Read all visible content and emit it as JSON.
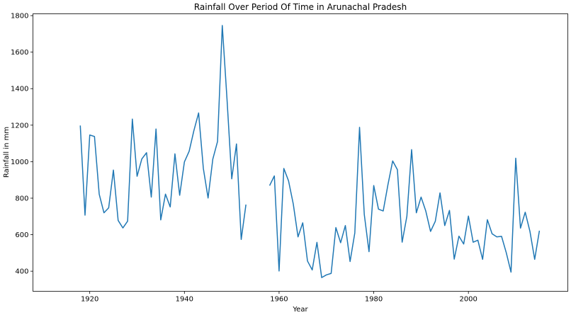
{
  "chart_data": {
    "type": "line",
    "title": "Rainfall Over Period Of Time in Arunachal Pradesh",
    "xlabel": "Year",
    "ylabel": "Rainfall in mm",
    "xlim": [
      1908,
      2021
    ],
    "ylim": [
      290,
      1810
    ],
    "xticks": [
      1920,
      1940,
      1960,
      1980,
      2000
    ],
    "yticks": [
      400,
      600,
      800,
      1000,
      1200,
      1400,
      1600,
      1800
    ],
    "grid": false,
    "legend": "none",
    "color": "#1f77b4",
    "series": [
      {
        "segments": [
          [
            [
              1918,
              1198
            ],
            [
              1919,
              707
            ],
            [
              1920,
              1146
            ],
            [
              1921,
              1138
            ],
            [
              1922,
              822
            ],
            [
              1923,
              720
            ],
            [
              1924,
              747
            ],
            [
              1925,
              954
            ],
            [
              1926,
              678
            ],
            [
              1927,
              637
            ],
            [
              1928,
              674
            ],
            [
              1929,
              1233
            ],
            [
              1930,
              920
            ],
            [
              1931,
              1015
            ],
            [
              1932,
              1049
            ],
            [
              1933,
              806
            ],
            [
              1934,
              1179
            ],
            [
              1935,
              681
            ],
            [
              1936,
              822
            ],
            [
              1937,
              752
            ],
            [
              1938,
              1043
            ],
            [
              1939,
              816
            ],
            [
              1940,
              999
            ],
            [
              1941,
              1057
            ],
            [
              1942,
              1170
            ],
            [
              1943,
              1267
            ],
            [
              1944,
              963
            ],
            [
              1945,
              801
            ],
            [
              1946,
              1014
            ],
            [
              1947,
              1111
            ],
            [
              1948,
              1746
            ],
            [
              1949,
              1342
            ],
            [
              1950,
              906
            ],
            [
              1951,
              1097
            ],
            [
              1952,
              574
            ],
            [
              1953,
              765
            ]
          ],
          [
            [
              1958,
              869
            ],
            [
              1959,
              922
            ],
            [
              1960,
              401
            ],
            [
              1961,
              963
            ],
            [
              1962,
              895
            ],
            [
              1963,
              768
            ],
            [
              1964,
              588
            ],
            [
              1965,
              665
            ],
            [
              1966,
              456
            ],
            [
              1967,
              407
            ],
            [
              1968,
              558
            ],
            [
              1969,
              365
            ],
            [
              1970,
              380
            ],
            [
              1971,
              388
            ],
            [
              1972,
              639
            ],
            [
              1973,
              556
            ],
            [
              1974,
              650
            ],
            [
              1975,
              453
            ],
            [
              1976,
              610
            ],
            [
              1977,
              1188
            ],
            [
              1978,
              711
            ],
            [
              1979,
              507
            ],
            [
              1980,
              869
            ],
            [
              1981,
              740
            ],
            [
              1982,
              730
            ],
            [
              1983,
              874
            ],
            [
              1984,
              1004
            ],
            [
              1985,
              956
            ],
            [
              1986,
              559
            ],
            [
              1987,
              701
            ],
            [
              1988,
              1066
            ],
            [
              1989,
              720
            ],
            [
              1990,
              806
            ],
            [
              1991,
              729
            ],
            [
              1992,
              618
            ],
            [
              1993,
              673
            ],
            [
              1994,
              829
            ],
            [
              1995,
              650
            ],
            [
              1996,
              733
            ],
            [
              1997,
              466
            ],
            [
              1998,
              592
            ],
            [
              1999,
              549
            ],
            [
              2000,
              702
            ],
            [
              2001,
              559
            ],
            [
              2002,
              570
            ],
            [
              2003,
              465
            ],
            [
              2004,
              682
            ],
            [
              2005,
              605
            ],
            [
              2006,
              588
            ],
            [
              2007,
              591
            ],
            [
              2008,
              501
            ],
            [
              2009,
              395
            ],
            [
              2010,
              1019
            ],
            [
              2011,
              636
            ],
            [
              2012,
              723
            ],
            [
              2013,
              618
            ],
            [
              2014,
              465
            ],
            [
              2015,
              622
            ]
          ]
        ]
      }
    ]
  }
}
